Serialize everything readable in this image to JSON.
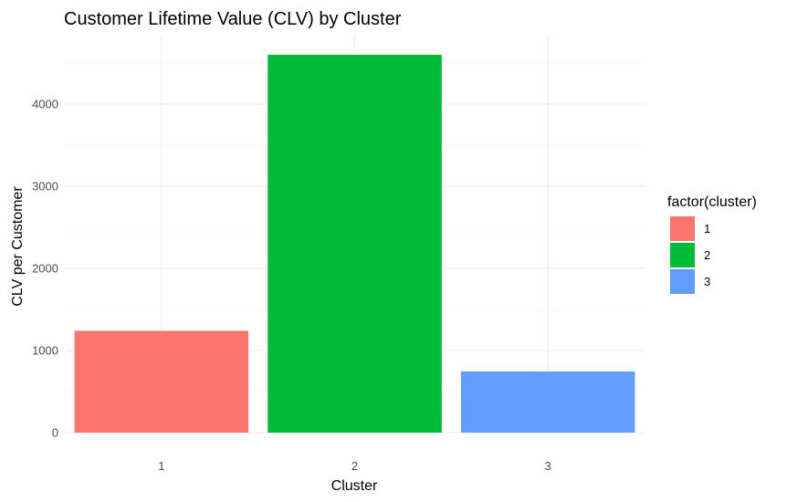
{
  "chart_data": {
    "type": "bar",
    "title": "Customer Lifetime Value (CLV) by Cluster",
    "xlabel": "Cluster",
    "ylabel": "CLV per Customer",
    "categories": [
      "1",
      "2",
      "3"
    ],
    "values": [
      1240,
      4600,
      745
    ],
    "colors": [
      "#F8766D",
      "#00BA38",
      "#619CFF"
    ],
    "yticks": [
      0,
      1000,
      2000,
      3000,
      4000
    ],
    "ylim": [
      0,
      4600
    ],
    "grid": true,
    "legend": {
      "title": "factor(cluster)",
      "position": "right",
      "items": [
        {
          "label": "1",
          "color": "#F8766D"
        },
        {
          "label": "2",
          "color": "#00BA38"
        },
        {
          "label": "3",
          "color": "#619CFF"
        }
      ]
    }
  }
}
